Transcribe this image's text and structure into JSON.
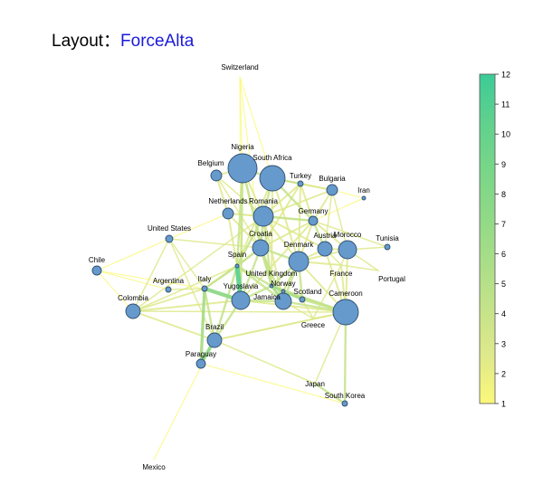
{
  "title": {
    "prefix": "Layout：",
    "name": "ForceAlta"
  },
  "colors": {
    "node_fill": "#6699cc",
    "node_stroke": "#2f4f6f",
    "accent": "#1a1adb",
    "scale": [
      "#fbf87a",
      "#dfe98b",
      "#c5e38a",
      "#a9de88",
      "#8fd987",
      "#78d688",
      "#5fd18d",
      "#3ccb97"
    ]
  },
  "colorbar": {
    "min": 1,
    "max": 12,
    "ticks": [
      "1",
      "2",
      "3",
      "4",
      "5",
      "6",
      "7",
      "8",
      "9",
      "10",
      "11",
      "12"
    ]
  },
  "nodes": [
    {
      "id": "Switzerland",
      "label": "Switzerland",
      "size": 2,
      "fill": false
    },
    {
      "id": "Nigeria",
      "label": "Nigeria",
      "size": 16,
      "fill": true
    },
    {
      "id": "SouthAfrica",
      "label": "South Africa",
      "size": 14,
      "fill": true
    },
    {
      "id": "Belgium",
      "label": "Belgium",
      "size": 6,
      "fill": true
    },
    {
      "id": "Turkey",
      "label": "Turkey",
      "size": 3,
      "fill": true
    },
    {
      "id": "Bulgaria",
      "label": "Bulgaria",
      "size": 6,
      "fill": true
    },
    {
      "id": "Iran",
      "label": "Iran",
      "size": 2,
      "fill": true
    },
    {
      "id": "Netherlands",
      "label": "Netherlands",
      "size": 6,
      "fill": true
    },
    {
      "id": "Romania",
      "label": "Romania",
      "size": 11,
      "fill": true
    },
    {
      "id": "Germany",
      "label": "Germany",
      "size": 5,
      "fill": true
    },
    {
      "id": "UnitedStates",
      "label": "United States",
      "size": 4,
      "fill": true
    },
    {
      "id": "Austria",
      "label": "Austria",
      "size": 8,
      "fill": true
    },
    {
      "id": "Morocco",
      "label": "Morocco",
      "size": 10,
      "fill": true
    },
    {
      "id": "Tunisia",
      "label": "Tunisia",
      "size": 3,
      "fill": true
    },
    {
      "id": "Croatia",
      "label": "Croatia",
      "size": 9,
      "fill": true
    },
    {
      "id": "Denmark",
      "label": "Denmark",
      "size": 11,
      "fill": true
    },
    {
      "id": "Chile",
      "label": "Chile",
      "size": 5,
      "fill": true
    },
    {
      "id": "Spain",
      "label": "Spain",
      "size": 2,
      "fill": true
    },
    {
      "id": "France",
      "label": "France",
      "size": 2,
      "fill": false
    },
    {
      "id": "Portugal",
      "label": "Portugal",
      "size": 2,
      "fill": false
    },
    {
      "id": "UnitedKingdom",
      "label": "United Kingdom",
      "size": 2,
      "fill": true
    },
    {
      "id": "Argentina",
      "label": "Argentina",
      "size": 3,
      "fill": true
    },
    {
      "id": "Italy",
      "label": "Italy",
      "size": 3,
      "fill": true
    },
    {
      "id": "Norway",
      "label": "Norway",
      "size": 2,
      "fill": true
    },
    {
      "id": "Yugoslavia",
      "label": "Yugoslavia",
      "size": 10,
      "fill": true
    },
    {
      "id": "Scotland",
      "label": "Scotland",
      "size": 3,
      "fill": true
    },
    {
      "id": "Jamaica",
      "label": "Jamaica",
      "size": 9,
      "fill": true
    },
    {
      "id": "Cameroon",
      "label": "Cameroon",
      "size": 14,
      "fill": true
    },
    {
      "id": "Colombia",
      "label": "Colombia",
      "size": 8,
      "fill": true
    },
    {
      "id": "Greece",
      "label": "Greece",
      "size": 2,
      "fill": false
    },
    {
      "id": "Brazil",
      "label": "Brazil",
      "size": 8,
      "fill": true
    },
    {
      "id": "Paraguay",
      "label": "Paraguay",
      "size": 5,
      "fill": true
    },
    {
      "id": "Japan",
      "label": "Japan",
      "size": 2,
      "fill": false
    },
    {
      "id": "SouthKorea",
      "label": "South Korea",
      "size": 3,
      "fill": true
    },
    {
      "id": "Mexico",
      "label": "Mexico",
      "size": 2,
      "fill": false
    }
  ],
  "edges": [
    [
      "Switzerland",
      "Nigeria",
      1
    ],
    [
      "Switzerland",
      "SouthAfrica",
      1
    ],
    [
      "Switzerland",
      "Croatia",
      1
    ],
    [
      "Switzerland",
      "Yugoslavia",
      1
    ],
    [
      "Nigeria",
      "SouthAfrica",
      4
    ],
    [
      "Nigeria",
      "Belgium",
      3
    ],
    [
      "Nigeria",
      "Romania",
      3
    ],
    [
      "Nigeria",
      "Spain",
      4
    ],
    [
      "Nigeria",
      "Croatia",
      3
    ],
    [
      "Nigeria",
      "UnitedKingdom",
      4
    ],
    [
      "Nigeria",
      "Yugoslavia",
      4
    ],
    [
      "SouthAfrica",
      "Turkey",
      4
    ],
    [
      "SouthAfrica",
      "Romania",
      4
    ],
    [
      "SouthAfrica",
      "Germany",
      4
    ],
    [
      "SouthAfrica",
      "Denmark",
      3
    ],
    [
      "SouthAfrica",
      "Spain",
      3
    ],
    [
      "SouthAfrica",
      "UnitedKingdom",
      3
    ],
    [
      "SouthAfrica",
      "Bulgaria",
      3
    ],
    [
      "Belgium",
      "Netherlands",
      3
    ],
    [
      "Belgium",
      "Romania",
      2
    ],
    [
      "Belgium",
      "Croatia",
      2
    ],
    [
      "Turkey",
      "Bulgaria",
      3
    ],
    [
      "Turkey",
      "Germany",
      3
    ],
    [
      "Turkey",
      "Romania",
      3
    ],
    [
      "Turkey",
      "Croatia",
      3
    ],
    [
      "Turkey",
      "Denmark",
      3
    ],
    [
      "Bulgaria",
      "Iran",
      1
    ],
    [
      "Bulgaria",
      "Germany",
      3
    ],
    [
      "Bulgaria",
      "Romania",
      3
    ],
    [
      "Bulgaria",
      "Morocco",
      2
    ],
    [
      "Bulgaria",
      "Austria",
      2
    ],
    [
      "Netherlands",
      "Romania",
      3
    ],
    [
      "Netherlands",
      "Croatia",
      3
    ],
    [
      "Netherlands",
      "UnitedStates",
      1
    ],
    [
      "Netherlands",
      "Spain",
      3
    ],
    [
      "Netherlands",
      "Germany",
      2
    ],
    [
      "Romania",
      "Croatia",
      4
    ],
    [
      "Romania",
      "Germany",
      4
    ],
    [
      "Romania",
      "Spain",
      4
    ],
    [
      "Romania",
      "Denmark",
      3
    ],
    [
      "Romania",
      "UnitedKingdom",
      4
    ],
    [
      "Romania",
      "Jamaica",
      3
    ],
    [
      "Romania",
      "Colombia",
      2
    ],
    [
      "Romania",
      "Austria",
      3
    ],
    [
      "Germany",
      "Austria",
      4
    ],
    [
      "Germany",
      "Morocco",
      3
    ],
    [
      "Germany",
      "Denmark",
      3
    ],
    [
      "Germany",
      "Croatia",
      3
    ],
    [
      "Germany",
      "Tunisia",
      2
    ],
    [
      "Germany",
      "Iran",
      1
    ],
    [
      "Germany",
      "Yugoslavia",
      3
    ],
    [
      "UnitedStates",
      "Croatia",
      2
    ],
    [
      "UnitedStates",
      "Chile",
      1
    ],
    [
      "UnitedStates",
      "Colombia",
      2
    ],
    [
      "UnitedStates",
      "Brazil",
      2
    ],
    [
      "UnitedStates",
      "Italy",
      2
    ],
    [
      "Austria",
      "Morocco",
      3
    ],
    [
      "Austria",
      "Denmark",
      3
    ],
    [
      "Austria",
      "Cameroon",
      3
    ],
    [
      "Austria",
      "France",
      2
    ],
    [
      "Morocco",
      "Tunisia",
      2
    ],
    [
      "Morocco",
      "Portugal",
      2
    ],
    [
      "Morocco",
      "France",
      2
    ],
    [
      "Morocco",
      "Cameroon",
      3
    ],
    [
      "Morocco",
      "Denmark",
      3
    ],
    [
      "Croatia",
      "Denmark",
      4
    ],
    [
      "Croatia",
      "Spain",
      4
    ],
    [
      "Croatia",
      "UnitedKingdom",
      4
    ],
    [
      "Croatia",
      "Jamaica",
      4
    ],
    [
      "Croatia",
      "Yugoslavia",
      4
    ],
    [
      "Croatia",
      "Italy",
      3
    ],
    [
      "Denmark",
      "UnitedKingdom",
      4
    ],
    [
      "Denmark",
      "Norway",
      4
    ],
    [
      "Denmark",
      "Scotland",
      4
    ],
    [
      "Denmark",
      "Cameroon",
      3
    ],
    [
      "Denmark",
      "France",
      3
    ],
    [
      "Denmark",
      "Jamaica",
      4
    ],
    [
      "Chile",
      "Italy",
      1
    ],
    [
      "Chile",
      "Argentina",
      1
    ],
    [
      "Chile",
      "Colombia",
      1
    ],
    [
      "Spain",
      "UnitedKingdom",
      4
    ],
    [
      "Spain",
      "Italy",
      4
    ],
    [
      "Spain",
      "Yugoslavia",
      10
    ],
    [
      "Spain",
      "Jamaica",
      4
    ],
    [
      "Spain",
      "Brazil",
      4
    ],
    [
      "Spain",
      "Colombia",
      2
    ],
    [
      "UnitedKingdom",
      "Norway",
      5
    ],
    [
      "UnitedKingdom",
      "Scotland",
      5
    ],
    [
      "UnitedKingdom",
      "Jamaica",
      5
    ],
    [
      "UnitedKingdom",
      "Cameroon",
      4
    ],
    [
      "UnitedKingdom",
      "Yugoslavia",
      4
    ],
    [
      "Norway",
      "Scotland",
      4
    ],
    [
      "Norway",
      "Jamaica",
      6
    ],
    [
      "Norway",
      "Cameroon",
      4
    ],
    [
      "Scotland",
      "Cameroon",
      4
    ],
    [
      "Scotland",
      "Greece",
      2
    ],
    [
      "Jamaica",
      "Cameroon",
      4
    ],
    [
      "Jamaica",
      "Yugoslavia",
      4
    ],
    [
      "Jamaica",
      "Greece",
      2
    ],
    [
      "Italy",
      "Argentina",
      2
    ],
    [
      "Italy",
      "Yugoslavia",
      8
    ],
    [
      "Italy",
      "Colombia",
      3
    ],
    [
      "Italy",
      "Brazil",
      4
    ],
    [
      "Yugoslavia",
      "Brazil",
      4
    ],
    [
      "Yugoslavia",
      "Cameroon",
      3
    ],
    [
      "Yugoslavia",
      "Colombia",
      3
    ],
    [
      "Cameroon",
      "France",
      3
    ],
    [
      "Cameroon",
      "Greece",
      2
    ],
    [
      "Cameroon",
      "SouthKorea",
      4
    ],
    [
      "Cameroon",
      "Japan",
      2
    ],
    [
      "Cameroon",
      "Brazil",
      3
    ],
    [
      "Colombia",
      "Brazil",
      3
    ],
    [
      "Colombia",
      "Cameroon",
      2
    ],
    [
      "Brazil",
      "Paraguay",
      7
    ],
    [
      "Brazil",
      "Mexico",
      1
    ],
    [
      "Brazil",
      "Cameroon",
      2
    ],
    [
      "Brazil",
      "Japan",
      2
    ],
    [
      "Paraguay",
      "Italy",
      6
    ],
    [
      "Paraguay",
      "SouthKorea",
      1
    ],
    [
      "Japan",
      "SouthKorea",
      4
    ],
    [
      "Portugal",
      "France",
      2
    ],
    [
      "Greece",
      "France",
      2
    ]
  ]
}
